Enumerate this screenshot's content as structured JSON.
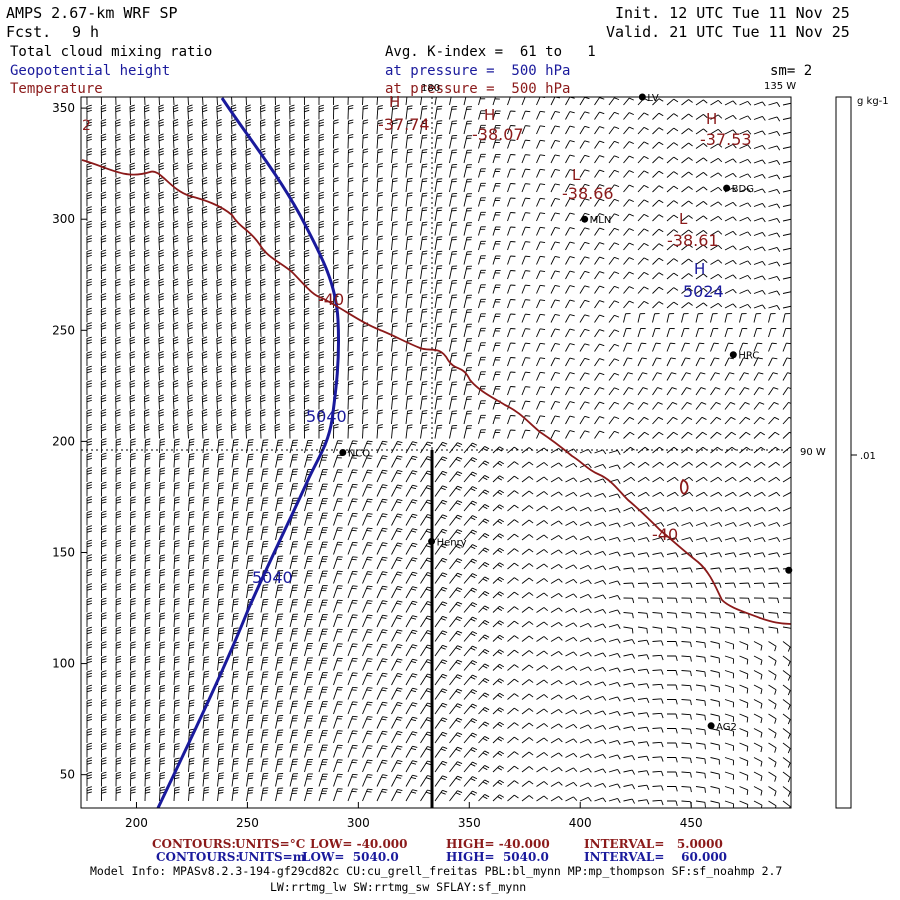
{
  "header": {
    "model": "AMPS 2.67-km WRF SP",
    "fcst_label": "Fcst.",
    "fcst_value": "9 h",
    "init": "Init. 12 UTC Tue 11 Nov 25",
    "valid": "Valid. 21 UTC Tue 11 Nov 25",
    "field1": "Total cloud mixing ratio",
    "field2": "Geopotential height",
    "field3": "Temperature",
    "avg_line": "Avg. K-index =  61 to   1",
    "pressure1": "at pressure =  500 hPa",
    "pressure2": "at pressure =  500 hPa",
    "sm": "sm= 2"
  },
  "map": {
    "x_ticks": [
      "200",
      "250",
      "300",
      "350",
      "400",
      "450"
    ],
    "x_tick_values": [
      200,
      250,
      300,
      350,
      400,
      450
    ],
    "y_ticks": [
      "50",
      "100",
      "150",
      "200",
      "250",
      "300",
      "350"
    ],
    "y_tick_values": [
      50,
      100,
      150,
      200,
      250,
      300,
      350
    ],
    "x_range": [
      175,
      495
    ],
    "y_range": [
      35,
      355
    ],
    "meridian_180": "180",
    "meridian_135": "135 W",
    "meridian_90": "90 W",
    "height_labels": [
      "5040",
      "5040",
      "5024"
    ],
    "temp_labels": [
      "-40",
      "-40",
      "-37.74",
      "-38.07",
      "-38.66",
      "-38.61",
      "-37.53",
      "2"
    ],
    "hl_labels": [
      "H",
      "H",
      "L",
      "L",
      "H",
      "H"
    ],
    "stations": [
      {
        "name": "NCO",
        "x": 293,
        "y": 195
      },
      {
        "name": "Henry",
        "x": 333,
        "y": 155
      },
      {
        "name": "MLN",
        "x": 402,
        "y": 300
      },
      {
        "name": "BDG",
        "x": 466,
        "y": 314
      },
      {
        "name": "HRC",
        "x": 469,
        "y": 239
      },
      {
        "name": "AG2",
        "x": 459,
        "y": 72
      },
      {
        "name": "LV",
        "x": 428,
        "y": 355
      },
      {
        "name": "",
        "x": 494,
        "y": 142
      }
    ],
    "colors": {
      "height": "#1a1a9c",
      "temperature": "#8b1a1a",
      "barbs": "#000000"
    }
  },
  "colorbar": {
    "units": "g kg-1",
    "value": ".01"
  },
  "footer": {
    "line1_label": "CONTOURS:",
    "line1_units": "UNITS=°C",
    "line1_low": "LOW= -40.000",
    "line1_high": "HIGH= -40.000",
    "line1_interval": "INTERVAL=   5.0000",
    "line2_label": "CONTOURS:",
    "line2_units": "UNITS=m",
    "line2_low": "LOW=  5040.0",
    "line2_high": "HIGH=  5040.0",
    "line2_interval": "INTERVAL=    60.000",
    "model_info": "Model Info: MPASv8.2.3-194-gf29cd82c CU:cu_grell_freitas PBL:bl_mynn MP:mp_thompson SF:sf_noahmp 2.7",
    "model_info2": "LW:rrtmg_lw SW:rrtmg_sw SFLAY:sf_mynn"
  }
}
